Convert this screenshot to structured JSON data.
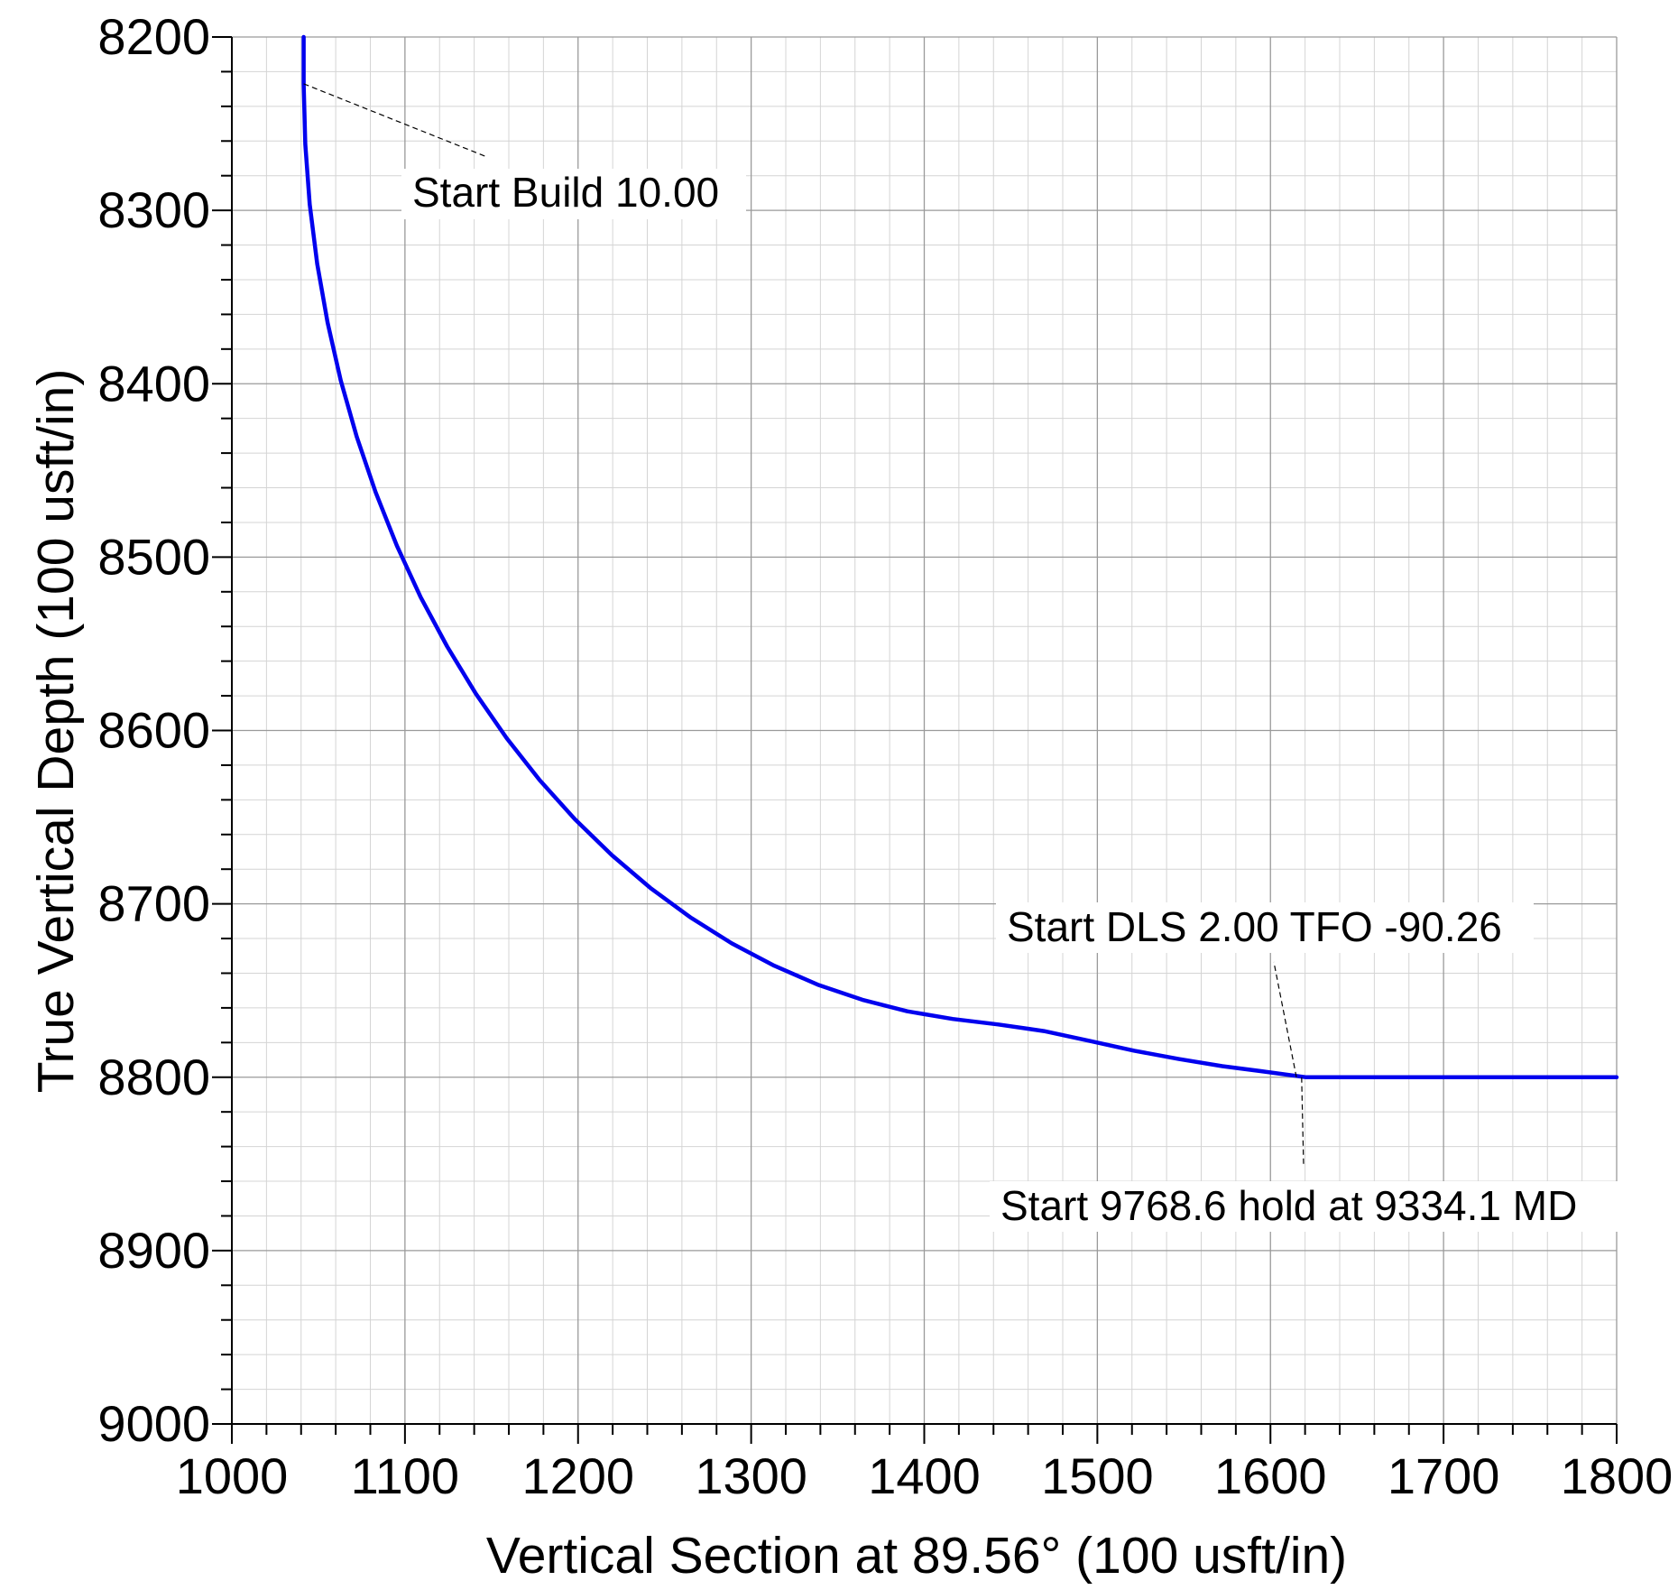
{
  "chart_data": {
    "type": "line",
    "title": "",
    "xlabel": "Vertical Section at 89.56° (100 usft/in)",
    "ylabel": "True Vertical Depth (100 usft/in)",
    "xlim": [
      1000,
      1800
    ],
    "ylim": [
      8200,
      9000
    ],
    "y_inverted": true,
    "grid": true,
    "x_ticks": [
      1000,
      1100,
      1200,
      1300,
      1400,
      1500,
      1600,
      1700,
      1800
    ],
    "y_ticks": [
      8200,
      8300,
      8400,
      8500,
      8600,
      8700,
      8800,
      8900,
      9000
    ],
    "line_color": "#0000ee",
    "series": [
      {
        "x": [
          1041.5,
          1041.5,
          1042.4,
          1045.0,
          1049.3,
          1055.3,
          1062.9,
          1072.2,
          1083.0,
          1095.3,
          1109.1,
          1124.4,
          1141.0,
          1158.8,
          1177.9,
          1198.2,
          1219.5,
          1241.7,
          1264.9,
          1288.8,
          1313.4,
          1338.5,
          1364.2,
          1390.2,
          1416.4,
          1442.8,
          1469.1,
          1495.4,
          1521.4,
          1547.1,
          1572.2,
          1596.8,
          1620.7,
          1800.0
        ],
        "y": [
          8200.0,
          8227.0,
          8261.8,
          8296.5,
          8330.8,
          8364.7,
          8398.1,
          8430.7,
          8462.5,
          8493.4,
          8523.1,
          8551.6,
          8578.8,
          8604.5,
          8628.7,
          8651.2,
          8671.9,
          8690.8,
          8707.8,
          8722.8,
          8735.7,
          8746.6,
          8755.3,
          8762.0,
          8766.4,
          8769.6,
          8773.4,
          8779.0,
          8784.7,
          8789.5,
          8793.6,
          8796.8,
          8800.0,
          8800.0
        ]
      }
    ],
    "annotations": [
      {
        "text": "Start Build 10.00",
        "x": 1041.5,
        "y": 8227.0
      },
      {
        "text": "Start DLS 2.00 TFO -90.26",
        "x": 1615.0,
        "y": 8800.0
      },
      {
        "text": "Start 9768.6 hold at 9334.1 MD",
        "x": 1618.0,
        "y": 8800.0
      }
    ]
  }
}
